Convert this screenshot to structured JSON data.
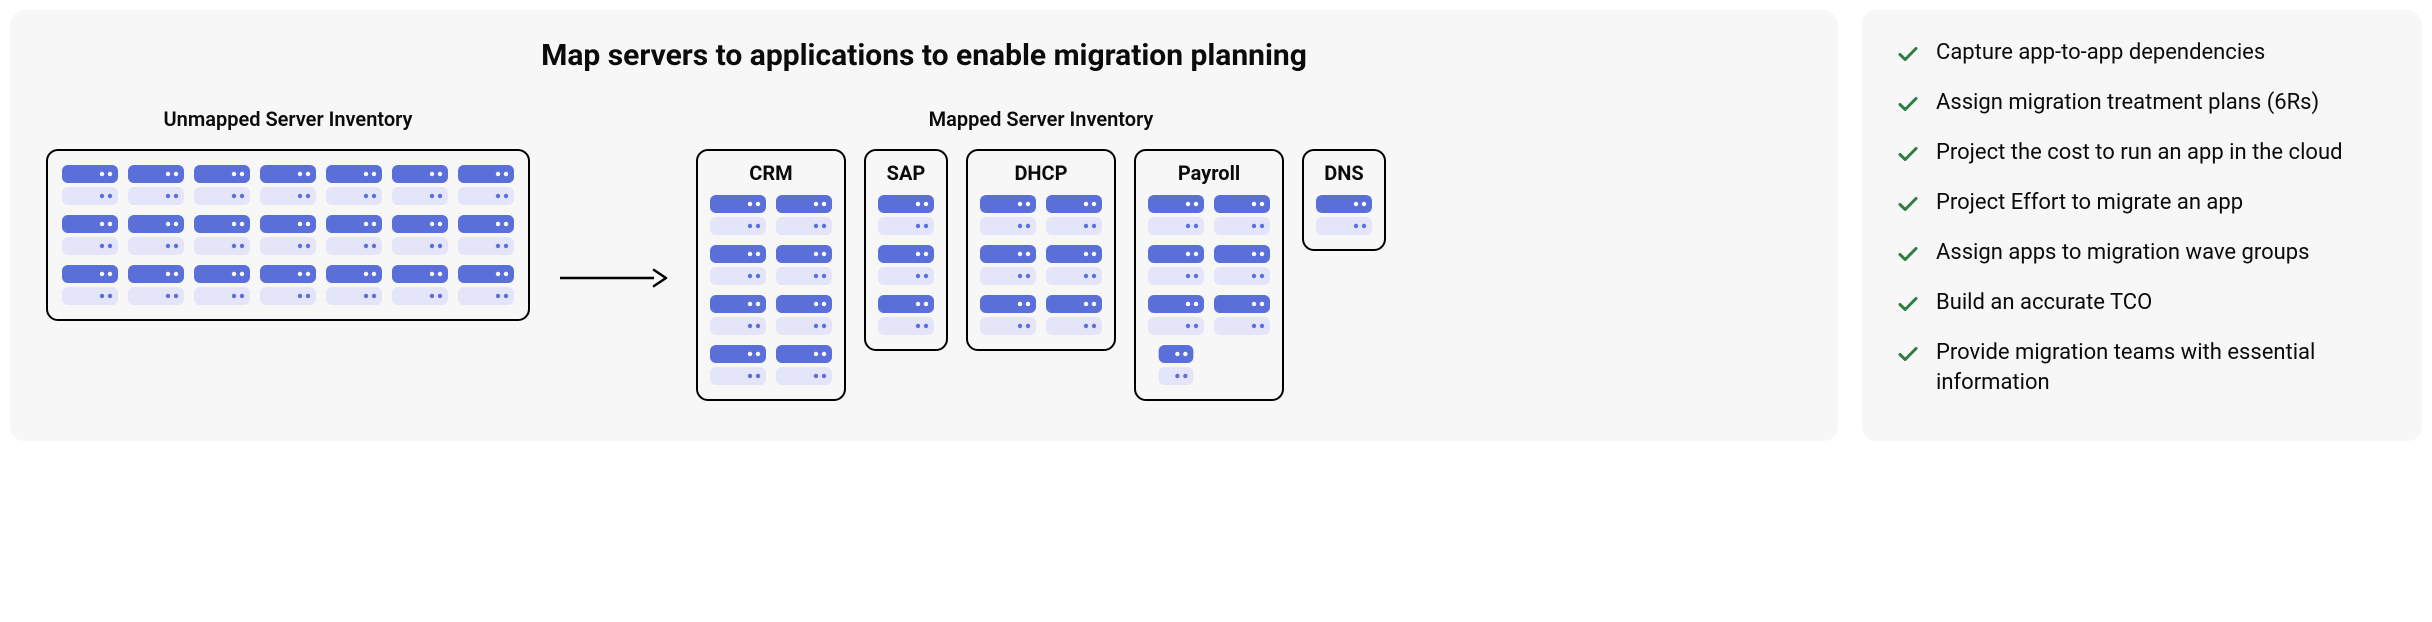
{
  "colors": {
    "panel_bg": "#f7f7f7",
    "border": "#000000",
    "text": "#0b0b0b",
    "server_dark": "#5a6fd8",
    "server_light": "#e4e5f8",
    "dot_dark": "#ffffff",
    "dot_light": "#5a6fd8",
    "check": "#2e7d41"
  },
  "left": {
    "title": "Map servers to applications to enable migration planning",
    "unmapped": {
      "label": "Unmapped Server Inventory",
      "cols": 7,
      "rows": 3
    },
    "mapped": {
      "label": "Mapped Server Inventory",
      "apps": [
        {
          "name": "CRM",
          "grid": [
            [
              1,
              1
            ],
            [
              1,
              1
            ],
            [
              1,
              1
            ],
            [
              1,
              1
            ]
          ]
        },
        {
          "name": "SAP",
          "grid": [
            [
              1
            ],
            [
              1
            ],
            [
              1
            ]
          ]
        },
        {
          "name": "DHCP",
          "grid": [
            [
              1,
              1
            ],
            [
              1,
              1
            ],
            [
              1,
              1
            ]
          ]
        },
        {
          "name": "Payroll",
          "grid": [
            [
              1,
              1
            ],
            [
              1,
              1
            ],
            [
              1,
              1
            ],
            [
              2,
              0
            ]
          ]
        },
        {
          "name": "DNS",
          "grid": [
            [
              1
            ]
          ]
        }
      ]
    }
  },
  "right": {
    "benefits": [
      "Capture app-to-app dependencies",
      "Assign migration treatment plans (6Rs)",
      "Project the cost to run an app in the cloud",
      "Project Effort to migrate an app",
      "Assign apps to migration wave groups",
      "Build an accurate TCO",
      "Provide migration teams with essential information"
    ]
  },
  "server_unit": {
    "width": 56,
    "height": 40,
    "radius": 6
  }
}
